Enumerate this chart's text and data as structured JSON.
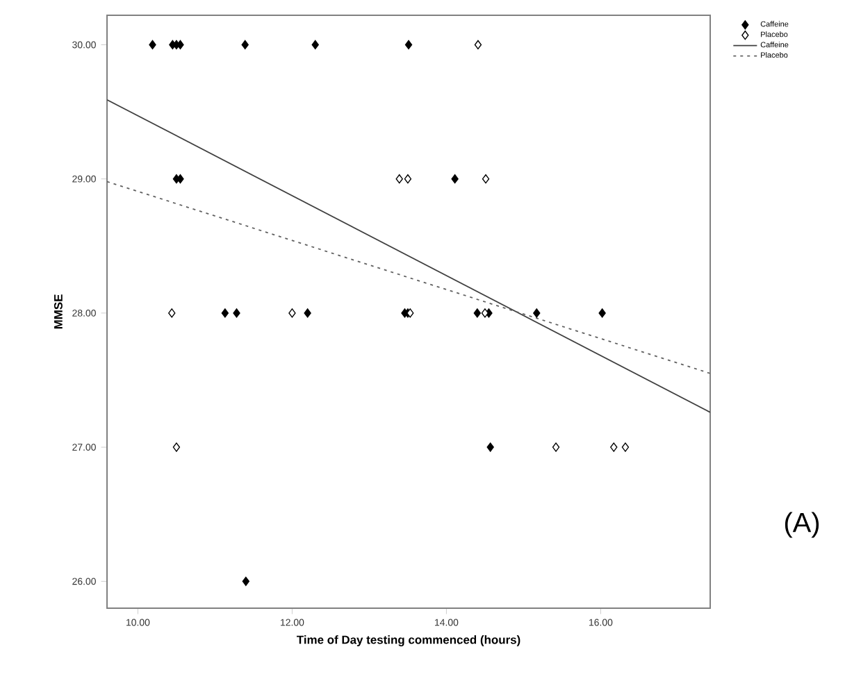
{
  "chart_data": {
    "type": "scatter",
    "xlabel": "Time of Day testing commenced (hours)",
    "ylabel": "MMSE",
    "xlim": [
      9.6,
      17.42
    ],
    "ylim": [
      25.8,
      30.22
    ],
    "xticks": [
      {
        "value": 10,
        "label": "10.00"
      },
      {
        "value": 12,
        "label": "12.00"
      },
      {
        "value": 14,
        "label": "14.00"
      },
      {
        "value": 16,
        "label": "16.00"
      }
    ],
    "yticks": [
      {
        "value": 26,
        "label": "26.00"
      },
      {
        "value": 27,
        "label": "27.00"
      },
      {
        "value": 28,
        "label": "28.00"
      },
      {
        "value": 29,
        "label": "29.00"
      },
      {
        "value": 30,
        "label": "30.00"
      }
    ],
    "grid": false,
    "legend": "top right",
    "annotations": [
      "(A)"
    ],
    "series": [
      {
        "name": "Caffeine",
        "color": "#000000",
        "marker": "diamond",
        "x": [
          10.19,
          10.45,
          10.5,
          10.55,
          11.39,
          12.3,
          13.51,
          10.5,
          10.55,
          14.11,
          11.13,
          11.28,
          12.2,
          13.46,
          13.5,
          14.4,
          14.55,
          15.17,
          16.02,
          14.57,
          11.4
        ],
        "values": [
          30,
          30,
          30,
          30,
          30,
          30,
          30,
          29,
          29,
          29,
          28,
          28,
          28,
          28,
          28,
          28,
          28,
          28,
          28,
          27,
          26
        ]
      },
      {
        "name": "Placebo",
        "color": "#ffffff",
        "marker": "diamond",
        "x": [
          14.41,
          13.39,
          13.5,
          14.51,
          10.44,
          12.0,
          13.53,
          14.5,
          10.5,
          15.42,
          16.17,
          16.32
        ],
        "values": [
          30,
          29,
          29,
          29,
          28,
          28,
          28,
          28,
          27,
          27,
          27,
          27
        ]
      },
      {
        "name": "Caffeine",
        "type": "line",
        "color": "#404040",
        "marker": "none",
        "line_style": "solid",
        "x": [
          9.6,
          17.42
        ],
        "values": [
          29.59,
          27.26
        ]
      },
      {
        "name": "Placebo",
        "type": "line",
        "color": "#606060",
        "marker": "none",
        "line_style": "dashed",
        "x": [
          9.6,
          17.42
        ],
        "values": [
          28.98,
          27.55
        ]
      }
    ]
  }
}
